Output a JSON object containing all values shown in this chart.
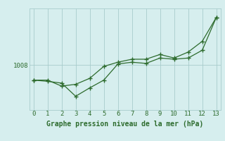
{
  "xlabel": "Graphe pression niveau de la mer (hPa)",
  "x": [
    0,
    1,
    2,
    3,
    4,
    5,
    6,
    7,
    8,
    9,
    10,
    11,
    12,
    13
  ],
  "line1": [
    1005.5,
    1005.3,
    1005.0,
    1002.8,
    1004.2,
    1005.5,
    1008.2,
    1008.5,
    1008.3,
    1009.2,
    1009.0,
    1009.2,
    1010.5,
    1016.0
  ],
  "line2": [
    1005.5,
    1005.5,
    1004.5,
    1004.8,
    1005.8,
    1007.8,
    1008.5,
    1009.0,
    1009.0,
    1009.8,
    1009.2,
    1010.2,
    1012.0,
    1016.0
  ],
  "ytick_label": "1008",
  "ytick_value": 1008,
  "ylim_min": 1000.5,
  "ylim_max": 1017.5,
  "xlim_min": -0.3,
  "xlim_max": 13.3,
  "bg_color": "#d6eeee",
  "line_color": "#2d6b2d",
  "grid_color": "#a8cccc",
  "text_color": "#2d6b2d",
  "label_color": "#2d6b2d"
}
